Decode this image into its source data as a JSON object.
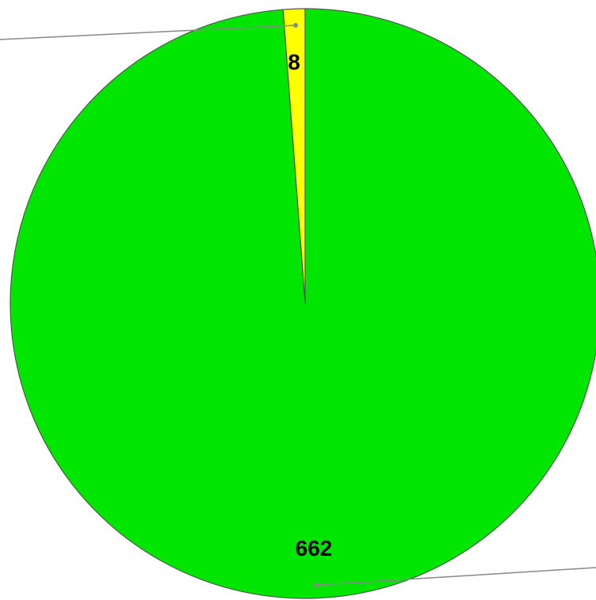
{
  "chart_data": {
    "type": "pie",
    "values": [
      8,
      662
    ],
    "labels": [
      "8",
      "662"
    ],
    "colors": [
      "#FFFF00",
      "#00E600"
    ],
    "start": "top",
    "direction": "counterclockwise",
    "outline_color": "#555555",
    "leader_line_color": "#888888"
  }
}
